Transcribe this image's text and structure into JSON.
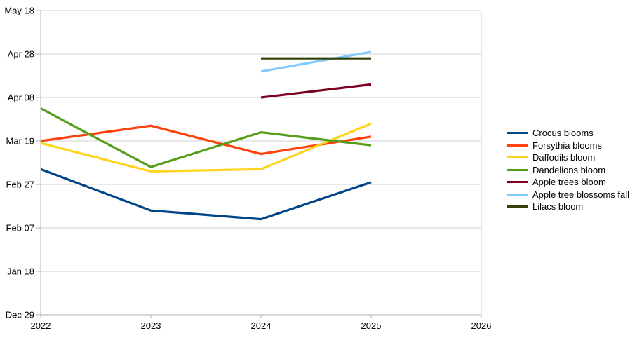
{
  "chart_data": {
    "type": "line",
    "grid": "horizontal",
    "legend_position": "right",
    "x_axis": {
      "ticks": [
        "2022",
        "2023",
        "2024",
        "2025",
        "2026"
      ],
      "min": 2022,
      "max": 2026
    },
    "y_axis": {
      "ticks": [
        "May 18",
        "Apr 28",
        "Apr 08",
        "Mar 19",
        "Feb 27",
        "Feb 07",
        "Jan 18",
        "Dec 29"
      ],
      "min": "Dec 29",
      "max": "May 18",
      "tick_interval_days": 20
    },
    "axis_color": "#b3b3b3",
    "grid_color": "#d3d3d3",
    "series": [
      {
        "name": "Crocus blooms",
        "color": "#004586",
        "years": [
          2022,
          2023,
          2024,
          2025
        ],
        "dates": [
          "Mar 06",
          "Feb 15",
          "Feb 11",
          "Feb 28"
        ]
      },
      {
        "name": "Forsythia blooms",
        "color": "#FF420E",
        "years": [
          2022,
          2023,
          2024,
          2025
        ],
        "dates": [
          "Mar 19",
          "Mar 26",
          "Mar 13",
          "Mar 21"
        ]
      },
      {
        "name": "Daffodils bloom",
        "color": "#FFD320",
        "years": [
          2022,
          2023,
          2024,
          2025
        ],
        "dates": [
          "Mar 18",
          "Mar 05",
          "Mar 06",
          "Mar 27"
        ]
      },
      {
        "name": "Dandelions bloom",
        "color": "#579D1C",
        "years": [
          2022,
          2023,
          2024,
          2025
        ],
        "dates": [
          "Apr 03",
          "Mar 07",
          "Mar 23",
          "Mar 17"
        ]
      },
      {
        "name": "Apple trees bloom",
        "color": "#7E0021",
        "years": [
          2024,
          2025
        ],
        "dates": [
          "Apr 08",
          "Apr 14"
        ]
      },
      {
        "name": "Apple tree blossoms fall",
        "color": "#83CAFF",
        "years": [
          2024,
          2025
        ],
        "dates": [
          "Apr 20",
          "Apr 29"
        ]
      },
      {
        "name": "Lilacs bloom",
        "color": "#314004",
        "years": [
          2024,
          2025
        ],
        "dates": [
          "Apr 26",
          "Apr 26"
        ]
      }
    ]
  }
}
